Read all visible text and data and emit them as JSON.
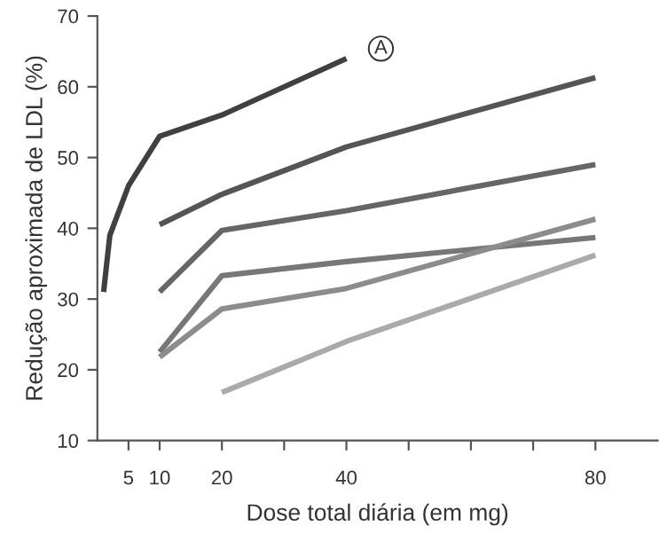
{
  "chart_data": {
    "type": "line",
    "xlabel": "Dose total diária (em mg)",
    "ylabel": "Redução aproximada de LDL (%)",
    "xlim": [
      0,
      90
    ],
    "xticks": [
      {
        "value": 5,
        "label": "5"
      },
      {
        "value": 10,
        "label": "10"
      },
      {
        "value": 20,
        "label": "20"
      },
      {
        "value": 30,
        "label": null
      },
      {
        "value": 40,
        "label": "40"
      },
      {
        "value": 50,
        "label": null
      },
      {
        "value": 60,
        "label": null
      },
      {
        "value": 70,
        "label": null
      },
      {
        "value": 80,
        "label": "80"
      }
    ],
    "ylim": [
      10,
      70
    ],
    "yticks": [
      10,
      20,
      30,
      40,
      50,
      60,
      70
    ],
    "grid": false,
    "marker": "none",
    "line_style": "solid",
    "series": [
      {
        "color": "#404040",
        "x": [
          1,
          2,
          5,
          10,
          20,
          40
        ],
        "values": [
          31,
          39,
          46,
          53,
          56,
          64
        ]
      },
      {
        "color": "#555555",
        "x": [
          10,
          20,
          40,
          80
        ],
        "values": [
          40.5,
          44.8,
          51.5,
          61.3
        ]
      },
      {
        "color": "#666666",
        "x": [
          10,
          20,
          40,
          80
        ],
        "values": [
          31,
          39.7,
          42.5,
          49
        ]
      },
      {
        "color": "#777777",
        "x": [
          10,
          20,
          40,
          80
        ],
        "values": [
          22.5,
          33.3,
          35.3,
          38.7
        ]
      },
      {
        "color": "#8c8c8c",
        "x": [
          10,
          20,
          40,
          80
        ],
        "values": [
          21.8,
          28.6,
          31.5,
          41.3
        ]
      },
      {
        "color": "#aaaaaa",
        "x": [
          20,
          40,
          80
        ],
        "values": [
          16.8,
          24,
          36.2
        ]
      }
    ],
    "annotations": [
      {
        "text": "A",
        "x": 40,
        "y": 64
      }
    ]
  }
}
